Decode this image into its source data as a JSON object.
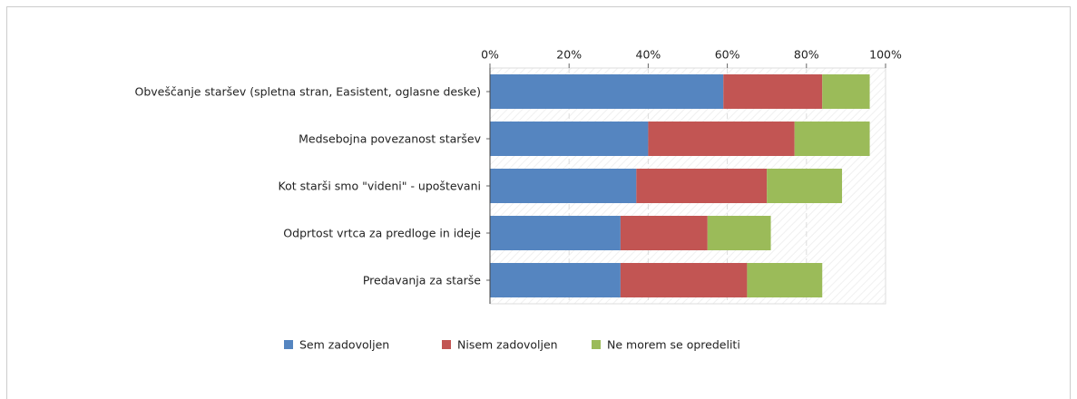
{
  "chart_data": {
    "type": "stacked_bar_horizontal",
    "categories": [
      "Obveščanje staršev (spletna stran, Easistent, oglasne deske)",
      "Medsebojna povezanost staršev",
      "Kot starši smo \"videni\" - upoštevani",
      "Odprtost vrtca za predloge in ideje",
      "Predavanja za starše"
    ],
    "series": [
      {
        "name": "Sem zadovoljen",
        "color": "#5585c0",
        "values": [
          59,
          40,
          37,
          33,
          33
        ]
      },
      {
        "name": "Nisem zadovoljen",
        "color": "#c25553",
        "values": [
          25,
          37,
          33,
          22,
          32
        ]
      },
      {
        "name": "Ne morem se opredeliti",
        "color": "#9bbb59",
        "values": [
          12,
          19,
          19,
          16,
          19
        ]
      }
    ],
    "xlim": [
      0,
      100
    ],
    "xticks": [
      {
        "value": 0,
        "label": "0%"
      },
      {
        "value": 20,
        "label": "20%"
      },
      {
        "value": 40,
        "label": "40%"
      },
      {
        "value": 60,
        "label": "60%"
      },
      {
        "value": 80,
        "label": "80%"
      },
      {
        "value": 100,
        "label": "100%"
      }
    ],
    "grid": true,
    "legend": "bottom"
  }
}
